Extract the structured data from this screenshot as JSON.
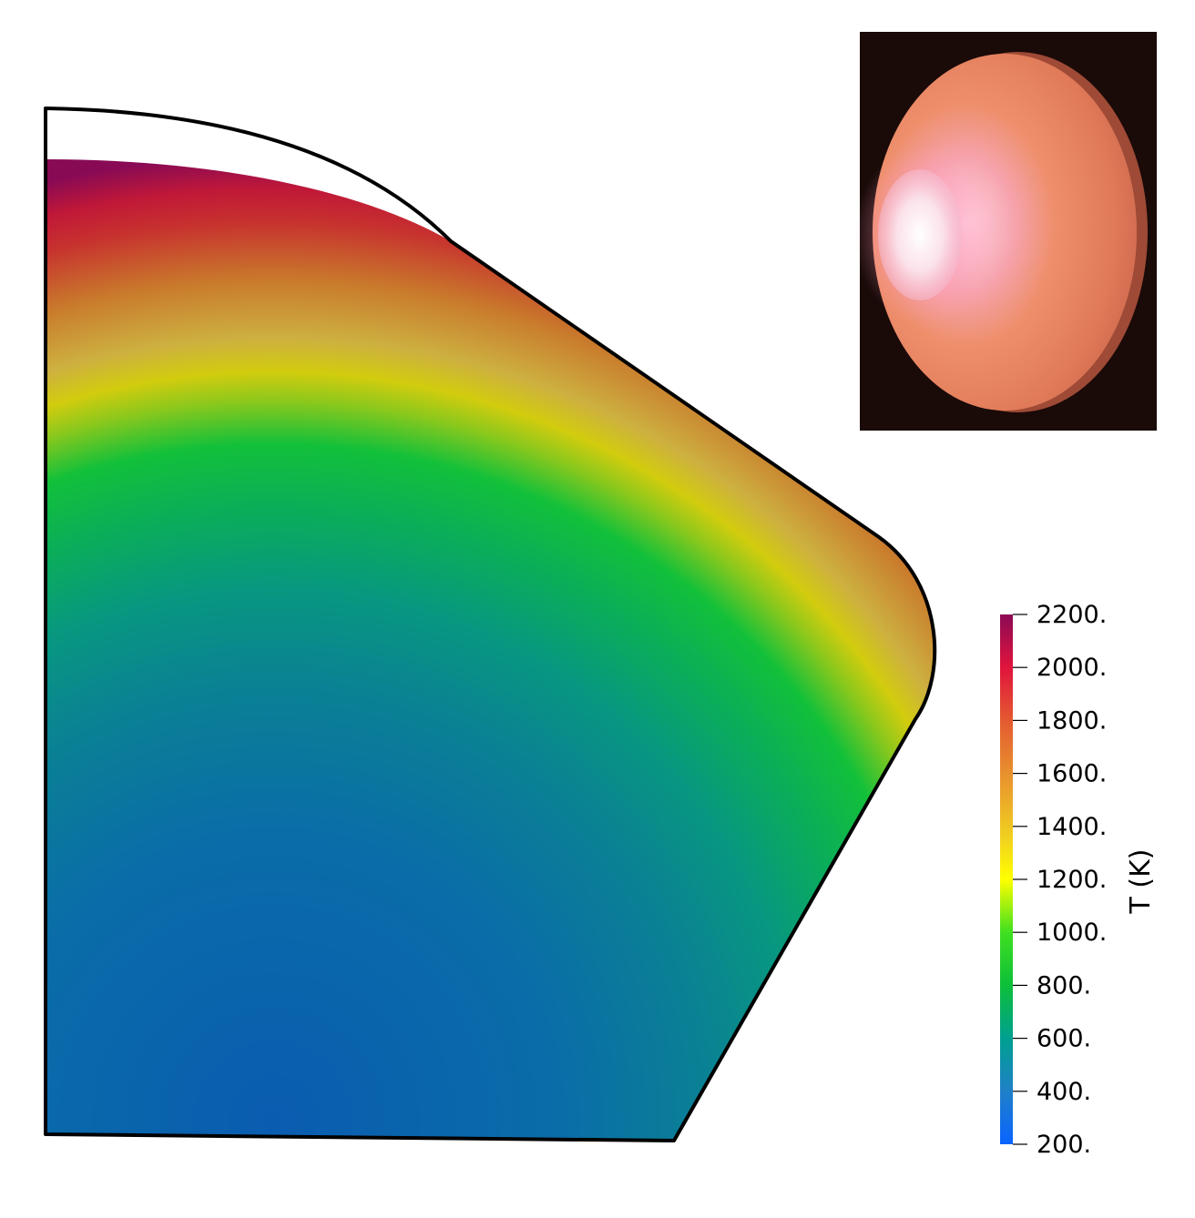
{
  "colorbar": {
    "title": "T (K)",
    "ticks": [
      "2200.",
      "2000.",
      "1800.",
      "1600.",
      "1400.",
      "1200.",
      "1000.",
      "800.",
      "600.",
      "400.",
      "200."
    ],
    "colors": {
      "top": "#8c0a55",
      "red": "#e0143c",
      "orange": "#e8702a",
      "amber": "#e0a028",
      "yellow": "#ffff00",
      "green": "#0dbf39",
      "teal": "#00a090",
      "blue": "#1f6ad2",
      "bottom": "#0a64ff"
    }
  },
  "inset_photo": {
    "description_icon": "heated-disc-photo"
  }
}
